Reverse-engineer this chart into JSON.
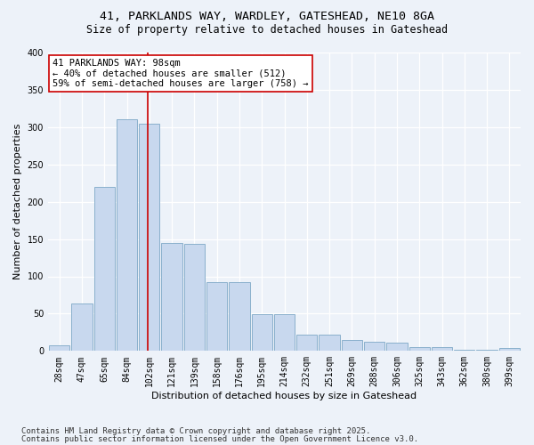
{
  "title_line1": "41, PARKLANDS WAY, WARDLEY, GATESHEAD, NE10 8GA",
  "title_line2": "Size of property relative to detached houses in Gateshead",
  "xlabel": "Distribution of detached houses by size in Gateshead",
  "ylabel": "Number of detached properties",
  "bar_color": "#c8d8ee",
  "bar_edge_color": "#8ab0cc",
  "categories": [
    "28sqm",
    "47sqm",
    "65sqm",
    "84sqm",
    "102sqm",
    "121sqm",
    "139sqm",
    "158sqm",
    "176sqm",
    "195sqm",
    "214sqm",
    "232sqm",
    "251sqm",
    "269sqm",
    "288sqm",
    "306sqm",
    "325sqm",
    "343sqm",
    "362sqm",
    "380sqm",
    "399sqm"
  ],
  "values": [
    8,
    64,
    220,
    310,
    305,
    145,
    143,
    92,
    92,
    49,
    49,
    22,
    22,
    15,
    12,
    11,
    5,
    5,
    2,
    2,
    4
  ],
  "vline_index": 4,
  "vline_color": "#cc0000",
  "annotation_text": "41 PARKLANDS WAY: 98sqm\n← 40% of detached houses are smaller (512)\n59% of semi-detached houses are larger (758) →",
  "annotation_box_color": "#ffffff",
  "annotation_box_edge": "#cc0000",
  "ylim": [
    0,
    400
  ],
  "yticks": [
    0,
    50,
    100,
    150,
    200,
    250,
    300,
    350,
    400
  ],
  "background_color": "#edf2f9",
  "plot_bg_color": "#edf2f9",
  "footer_line1": "Contains HM Land Registry data © Crown copyright and database right 2025.",
  "footer_line2": "Contains public sector information licensed under the Open Government Licence v3.0.",
  "title_fontsize": 9.5,
  "subtitle_fontsize": 8.5,
  "axis_label_fontsize": 8,
  "tick_fontsize": 7,
  "annotation_fontsize": 7.5,
  "footer_fontsize": 6.5
}
